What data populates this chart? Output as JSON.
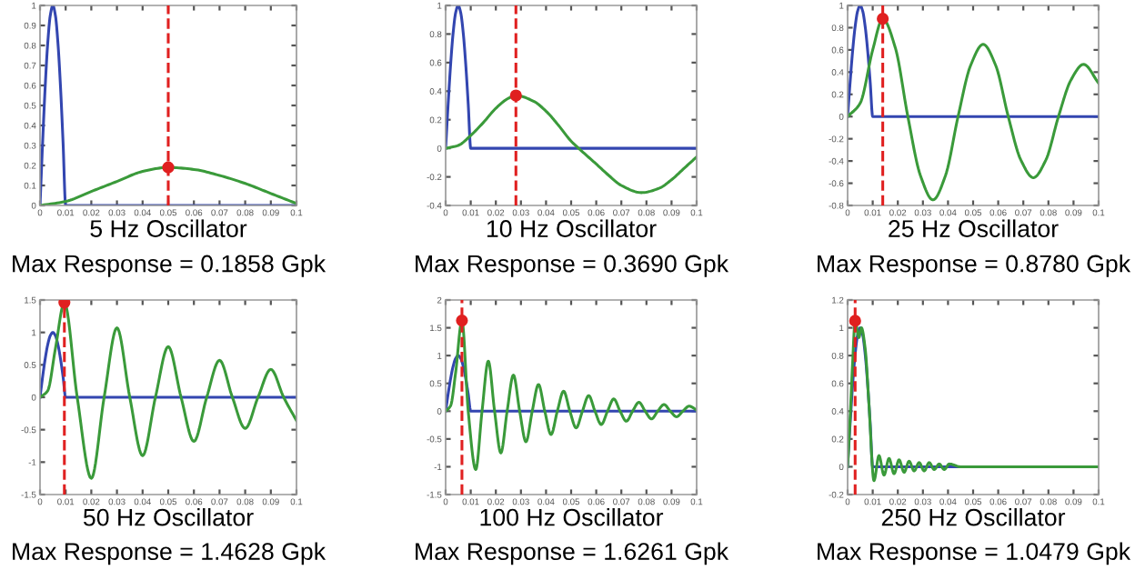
{
  "chart_data": [
    {
      "type": "line",
      "title": "5 Hz Oscillator",
      "subtitle": "Max Response = 0.1858 Gpk",
      "xlim": [
        0,
        0.1
      ],
      "xticks": [
        0,
        0.01,
        0.02,
        0.03,
        0.04,
        0.05,
        0.06,
        0.07,
        0.08,
        0.09,
        0.1
      ],
      "ylim": [
        0,
        1
      ],
      "yticks": [
        0,
        0.1,
        0.2,
        0.3,
        0.4,
        0.5,
        0.6,
        0.7,
        0.8,
        0.9,
        1
      ],
      "series": [
        {
          "color": "#3346b0",
          "x": [
            0,
            0.001,
            0.002,
            0.003,
            0.004,
            0.005,
            0.006,
            0.007,
            0.008,
            0.009,
            0.01,
            0.1
          ],
          "values": [
            0,
            0.31,
            0.59,
            0.81,
            0.95,
            1,
            0.95,
            0.81,
            0.59,
            0.31,
            0,
            0
          ]
        },
        {
          "color": "#3a9a3a",
          "x": [
            0,
            0.01,
            0.02,
            0.03,
            0.04,
            0.05,
            0.06,
            0.07,
            0.08,
            0.09,
            0.1
          ],
          "values": [
            0,
            0.02,
            0.07,
            0.12,
            0.17,
            0.19,
            0.18,
            0.15,
            0.11,
            0.06,
            0.01
          ]
        },
        {
          "type": "scatter",
          "color": "#e02020",
          "marker": "circle",
          "x": [
            0.05
          ],
          "values": [
            0.19
          ]
        }
      ],
      "ref_lines": [
        {
          "axis": "x",
          "value": 0.05,
          "color": "#e02020",
          "line_style": "dashed"
        }
      ]
    },
    {
      "type": "line",
      "title": "10 Hz Oscillator",
      "subtitle": "Max Response = 0.3690 Gpk",
      "xlim": [
        0,
        0.1
      ],
      "xticks": [
        0,
        0.01,
        0.02,
        0.03,
        0.04,
        0.05,
        0.06,
        0.07,
        0.08,
        0.09,
        0.1
      ],
      "ylim": [
        -0.4,
        1
      ],
      "yticks": [
        -0.4,
        -0.2,
        0,
        0.2,
        0.4,
        0.6,
        0.8,
        1
      ],
      "series": [
        {
          "color": "#3346b0",
          "x": [
            0,
            0.001,
            0.002,
            0.003,
            0.004,
            0.005,
            0.006,
            0.007,
            0.008,
            0.009,
            0.01,
            0.1
          ],
          "values": [
            0,
            0.31,
            0.59,
            0.81,
            0.95,
            1,
            0.95,
            0.81,
            0.59,
            0.31,
            0,
            0
          ]
        },
        {
          "color": "#3a9a3a",
          "x": [
            0,
            0.005,
            0.01,
            0.015,
            0.02,
            0.025,
            0.028,
            0.035,
            0.04,
            0.045,
            0.05,
            0.053,
            0.06,
            0.065,
            0.07,
            0.078,
            0.085,
            0.09,
            0.095,
            0.1
          ],
          "values": [
            0,
            0.02,
            0.09,
            0.18,
            0.28,
            0.35,
            0.37,
            0.33,
            0.26,
            0.16,
            0.05,
            0,
            -0.11,
            -0.19,
            -0.26,
            -0.31,
            -0.28,
            -0.22,
            -0.14,
            -0.06
          ]
        },
        {
          "type": "scatter",
          "color": "#e02020",
          "marker": "circle",
          "x": [
            0.028
          ],
          "values": [
            0.37
          ]
        }
      ],
      "ref_lines": [
        {
          "axis": "x",
          "value": 0.028,
          "color": "#e02020",
          "line_style": "dashed"
        }
      ]
    },
    {
      "type": "line",
      "title": "25 Hz Oscillator",
      "subtitle": "Max Response = 0.8780 Gpk",
      "xlim": [
        0,
        0.1
      ],
      "xticks": [
        0,
        0.01,
        0.02,
        0.03,
        0.04,
        0.05,
        0.06,
        0.07,
        0.08,
        0.09,
        0.1
      ],
      "ylim": [
        -0.8,
        1
      ],
      "yticks": [
        -0.8,
        -0.6,
        -0.4,
        -0.2,
        0,
        0.2,
        0.4,
        0.6,
        0.8,
        1
      ],
      "series": [
        {
          "color": "#3346b0",
          "x": [
            0,
            0.001,
            0.002,
            0.003,
            0.004,
            0.005,
            0.006,
            0.007,
            0.008,
            0.009,
            0.01,
            0.1
          ],
          "values": [
            0,
            0.31,
            0.59,
            0.81,
            0.95,
            1,
            0.95,
            0.81,
            0.59,
            0.31,
            0,
            0
          ]
        },
        {
          "color": "#3a9a3a",
          "x": [
            0,
            0.005,
            0.01,
            0.014,
            0.019,
            0.024,
            0.029,
            0.034,
            0.039,
            0.044,
            0.049,
            0.054,
            0.059,
            0.064,
            0.069,
            0.074,
            0.079,
            0.084,
            0.089,
            0.094,
            0.1
          ],
          "values": [
            0,
            0.12,
            0.6,
            0.88,
            0.62,
            0,
            -0.53,
            -0.75,
            -0.53,
            0,
            0.46,
            0.65,
            0.46,
            0,
            -0.39,
            -0.55,
            -0.39,
            0,
            0.33,
            0.47,
            0.3
          ]
        },
        {
          "type": "scatter",
          "color": "#e02020",
          "marker": "circle",
          "x": [
            0.014
          ],
          "values": [
            0.88
          ]
        }
      ],
      "ref_lines": [
        {
          "axis": "x",
          "value": 0.014,
          "color": "#e02020",
          "line_style": "dashed"
        }
      ]
    },
    {
      "type": "line",
      "title": "50 Hz Oscillator",
      "subtitle": "Max Response = 1.4628 Gpk",
      "xlim": [
        0,
        0.1
      ],
      "xticks": [
        0,
        0.01,
        0.02,
        0.03,
        0.04,
        0.05,
        0.06,
        0.07,
        0.08,
        0.09,
        0.1
      ],
      "ylim": [
        -1.5,
        1.5
      ],
      "yticks": [
        -1.5,
        -1,
        -0.5,
        0,
        0.5,
        1,
        1.5
      ],
      "series": [
        {
          "color": "#3346b0",
          "x": [
            0,
            0.001,
            0.002,
            0.003,
            0.004,
            0.005,
            0.006,
            0.007,
            0.008,
            0.009,
            0.01,
            0.1
          ],
          "values": [
            0,
            0.31,
            0.59,
            0.81,
            0.95,
            1,
            0.95,
            0.81,
            0.59,
            0.31,
            0,
            0
          ]
        },
        {
          "color": "#3a9a3a",
          "x": [
            0,
            0.003,
            0.006,
            0.0095,
            0.0145,
            0.02,
            0.025,
            0.03,
            0.035,
            0.04,
            0.045,
            0.05,
            0.055,
            0.06,
            0.065,
            0.07,
            0.075,
            0.08,
            0.085,
            0.09,
            0.095,
            0.1
          ],
          "values": [
            0,
            0.1,
            0.75,
            1.46,
            0,
            -1.25,
            0,
            1.07,
            0,
            -0.9,
            0,
            0.78,
            0,
            -0.68,
            0,
            0.57,
            0,
            -0.48,
            0,
            0.43,
            0,
            -0.36
          ]
        },
        {
          "type": "scatter",
          "color": "#e02020",
          "marker": "circle",
          "x": [
            0.0095
          ],
          "values": [
            1.46
          ]
        }
      ],
      "ref_lines": [
        {
          "axis": "x",
          "value": 0.0095,
          "color": "#e02020",
          "line_style": "dashed"
        }
      ]
    },
    {
      "type": "line",
      "title": "100 Hz Oscillator",
      "subtitle": "Max Response = 1.6261 Gpk",
      "xlim": [
        0,
        0.1
      ],
      "xticks": [
        0,
        0.01,
        0.02,
        0.03,
        0.04,
        0.05,
        0.06,
        0.07,
        0.08,
        0.09,
        0.1
      ],
      "ylim": [
        -1.5,
        2
      ],
      "yticks": [
        -1.5,
        -1,
        -0.5,
        0,
        0.5,
        1,
        1.5,
        2
      ],
      "series": [
        {
          "color": "#3346b0",
          "x": [
            0,
            0.001,
            0.002,
            0.003,
            0.004,
            0.005,
            0.006,
            0.007,
            0.008,
            0.009,
            0.01,
            0.1
          ],
          "values": [
            0,
            0.31,
            0.59,
            0.81,
            0.95,
            1,
            0.95,
            0.81,
            0.59,
            0.31,
            0,
            0
          ]
        },
        {
          "color": "#3a9a3a",
          "x": [
            0,
            0.002,
            0.004,
            0.0065,
            0.009,
            0.012,
            0.0145,
            0.017,
            0.0195,
            0.022,
            0.0245,
            0.027,
            0.0295,
            0.032,
            0.0345,
            0.037,
            0.0395,
            0.042,
            0.0445,
            0.047,
            0.0495,
            0.052,
            0.0545,
            0.057,
            0.0595,
            0.062,
            0.0645,
            0.067,
            0.0695,
            0.072,
            0.0745,
            0.077,
            0.0795,
            0.082,
            0.0845,
            0.087,
            0.0895,
            0.092,
            0.0945,
            0.097,
            0.1
          ],
          "values": [
            0,
            0.1,
            0.7,
            1.63,
            0,
            -1.05,
            0,
            0.9,
            0,
            -0.75,
            0,
            0.65,
            0,
            -0.55,
            0,
            0.48,
            0,
            -0.42,
            0,
            0.36,
            0,
            -0.3,
            0,
            0.28,
            0,
            -0.24,
            0,
            0.22,
            0,
            -0.18,
            0,
            0.16,
            0,
            -0.14,
            0,
            0.12,
            0,
            -0.1,
            0,
            0.09,
            0.02
          ]
        },
        {
          "type": "scatter",
          "color": "#e02020",
          "marker": "circle",
          "x": [
            0.0065
          ],
          "values": [
            1.63
          ]
        }
      ],
      "ref_lines": [
        {
          "axis": "x",
          "value": 0.0065,
          "color": "#e02020",
          "line_style": "dashed"
        }
      ]
    },
    {
      "type": "line",
      "title": "250 Hz Oscillator",
      "subtitle": "Max Response = 1.0479 Gpk",
      "xlim": [
        0,
        0.1
      ],
      "xticks": [
        0,
        0.01,
        0.02,
        0.03,
        0.04,
        0.05,
        0.06,
        0.07,
        0.08,
        0.09,
        0.1
      ],
      "ylim": [
        -0.2,
        1.2
      ],
      "yticks": [
        -0.2,
        0,
        0.2,
        0.4,
        0.6,
        0.8,
        1,
        1.2
      ],
      "series": [
        {
          "color": "#3346b0",
          "x": [
            0,
            0.001,
            0.002,
            0.003,
            0.004,
            0.005,
            0.006,
            0.007,
            0.008,
            0.009,
            0.01,
            0.1
          ],
          "values": [
            0,
            0.31,
            0.59,
            0.81,
            0.95,
            1,
            0.95,
            0.81,
            0.59,
            0.31,
            0,
            0
          ]
        },
        {
          "color": "#3a9a3a",
          "x": [
            0,
            0.001,
            0.002,
            0.003,
            0.0045,
            0.0055,
            0.007,
            0.0085,
            0.0105,
            0.0125,
            0.0145,
            0.0165,
            0.0185,
            0.0205,
            0.0225,
            0.0245,
            0.0265,
            0.0285,
            0.0305,
            0.0325,
            0.0345,
            0.0365,
            0.0385,
            0.0405,
            0.045,
            0.05,
            0.1
          ],
          "values": [
            0,
            0.35,
            0.75,
            1.05,
            0.93,
            1.0,
            0.85,
            0.45,
            -0.1,
            0.08,
            -0.06,
            0.06,
            -0.05,
            0.05,
            -0.04,
            0.04,
            -0.03,
            0.03,
            -0.03,
            0.03,
            -0.02,
            0.02,
            -0.02,
            0.02,
            0,
            0,
            0
          ]
        },
        {
          "type": "scatter",
          "color": "#e02020",
          "marker": "circle",
          "x": [
            0.003
          ],
          "values": [
            1.05
          ]
        }
      ],
      "ref_lines": [
        {
          "axis": "x",
          "value": 0.003,
          "color": "#e02020",
          "line_style": "dashed"
        }
      ]
    }
  ]
}
